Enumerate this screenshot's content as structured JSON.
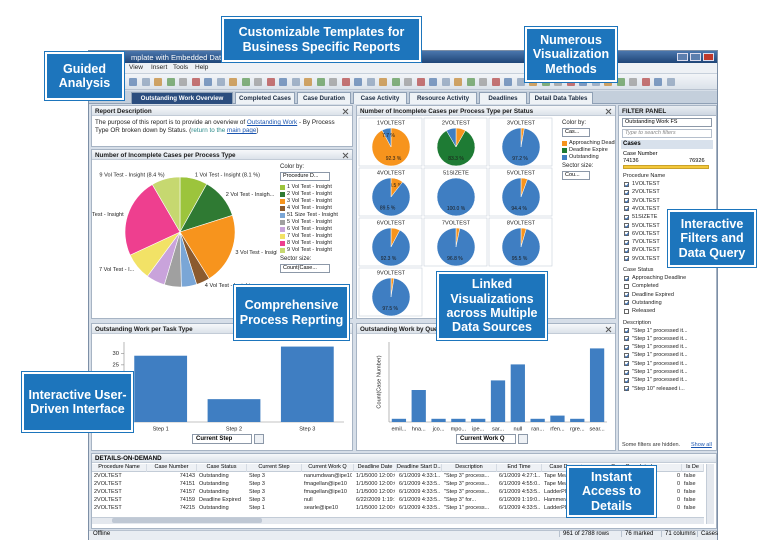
{
  "callouts": [
    "Guided Analysis",
    "Customizable Templates for Business Specific Reports",
    "Numerous Visualization Methods",
    "Interactive Filters and Data Query",
    "Comprehensive Process Reprting",
    "Linked Visualizations across Multiple Data Sources",
    "Interactive User-Driven Interface",
    "Instant Access to Details"
  ],
  "window": {
    "title": "mplate with Embedded Data.dx",
    "menu": [
      "View",
      "Insert",
      "Tools",
      "Help"
    ],
    "tabs": [
      "Outstanding Work Overview",
      "Completed Cases",
      "Case Duration",
      "Case Activity",
      "Resource Activity",
      "Deadlines",
      "Detail Data Tables"
    ],
    "active_tab": 0
  },
  "report": {
    "title": "Report Description",
    "parts": [
      {
        "text": "The purpose of this report is to provide an overview of "
      },
      {
        "text": "Outstanding Work",
        "link": true
      },
      {
        "text": " - By Process Type OR broken down by Status. ("
      },
      {
        "text": "return to the ",
        "muted": true
      },
      {
        "text": "main page",
        "link": true
      },
      {
        "text": ")"
      }
    ]
  },
  "chart_data": [
    {
      "type": "pie",
      "title": "Number of Incomplete Cases per Process Type",
      "color_by": "Color by:",
      "color_by_value": "Procedure D...",
      "sector_size": "Sector size:",
      "sector_size_value": "Count(Case...",
      "slices": [
        {
          "name": "1 Vol Test - Insight",
          "label": "1 Vol Test - Insight (8.1 %)",
          "value": 8.1,
          "color": "#9cc43c"
        },
        {
          "name": "2 Vol Test - Insight",
          "label": "2 Vol Test - Insigh...",
          "value": 12.0,
          "color": "#2f7a33"
        },
        {
          "name": "3 Vol Test - Insight",
          "label": "3 Vol Test - Insight",
          "value": 21.0,
          "color": "#f7941d"
        },
        {
          "name": "4 Vol Test - Insight",
          "label": "4 Vol Test - Insight",
          "value": 4.0,
          "color": "#8b5a2e"
        },
        {
          "name": "51 Size Test - Insight",
          "value": 4.5,
          "color": "#7aa6d6"
        },
        {
          "name": "5 Vol Test - Insight",
          "value": 5.0,
          "color": "#a0a0a0"
        },
        {
          "name": "6 Vol Test - Insight",
          "value": 5.5,
          "color": "#c9a3db"
        },
        {
          "name": "7 Vol Test - Insight",
          "label": "7 Vol Test - I...",
          "value": 8.0,
          "color": "#f2e266"
        },
        {
          "name": "8 Vol Test - Insight",
          "label": "8 Vol Test - Insight",
          "value": 23.5,
          "color": "#ee3f8f"
        },
        {
          "name": "9 Vol Test - Insight",
          "label": "9 Vol Test - Insight (8.4 %)",
          "value": 8.4,
          "color": "#c6d870"
        }
      ]
    },
    {
      "type": "pie_grid",
      "title": "Number of Incomplete Cases per Process Type per Status",
      "color_by": "Color by:",
      "color_by_value": "Cas...",
      "sector_size": "Sector size:",
      "sector_size_value": "Cou...",
      "series": [
        {
          "name": "Approaching Deadline",
          "color": "#f7941d"
        },
        {
          "name": "Deadline Expire",
          "color": "#1e7b34"
        },
        {
          "name": "Outstanding",
          "color": "#3f7ec2"
        }
      ],
      "pies": [
        {
          "name": "1VOLTEST",
          "values": [
            92.3,
            0,
            7.7
          ],
          "value_labels": [
            "92.3 %",
            null,
            "7.7 %"
          ]
        },
        {
          "name": "2VOLTEST",
          "values": [
            8.3,
            83.3,
            8.4
          ],
          "value_labels": [
            null,
            "83.3 %",
            null
          ]
        },
        {
          "name": "3VOLTEST",
          "values": [
            2.8,
            0,
            97.2
          ],
          "value_labels": [
            null,
            null,
            "97.2 %"
          ]
        },
        {
          "name": "4VOLTEST",
          "values": [
            10.5,
            0,
            89.5
          ],
          "value_labels": [
            "10.5 %",
            null,
            "89.5 %"
          ]
        },
        {
          "name": "51SIZETE",
          "values": [
            0,
            0,
            100
          ],
          "value_labels": [
            null,
            null,
            "100.0 %"
          ]
        },
        {
          "name": "5VOLTEST",
          "values": [
            5.6,
            0,
            94.4
          ],
          "value_labels": [
            null,
            null,
            "94.4 %"
          ]
        },
        {
          "name": "6VOLTEST",
          "values": [
            7.7,
            0,
            92.3
          ],
          "value_labels": [
            null,
            null,
            "92.3 %"
          ]
        },
        {
          "name": "7VOLTEST",
          "values": [
            3.2,
            0,
            96.8
          ],
          "value_labels": [
            null,
            null,
            "96.8 %"
          ]
        },
        {
          "name": "8VOLTEST",
          "values": [
            4.5,
            0,
            95.5
          ],
          "value_labels": [
            null,
            null,
            "95.5 %"
          ]
        },
        {
          "name": "9VOLTEST",
          "values": [
            2.5,
            0,
            97.5
          ],
          "value_labels": [
            null,
            null,
            "97.5 %"
          ]
        }
      ]
    },
    {
      "type": "bar",
      "title": "Outstanding Work per Task Type",
      "x_label": "Current Step",
      "categories": [
        "Step 1",
        "Step 2",
        "Step 3"
      ],
      "values": [
        29,
        10,
        33
      ],
      "color": "#3f7ec2",
      "ylim": [
        0,
        35
      ],
      "yticks": [
        0,
        5,
        10,
        15,
        20,
        25,
        30
      ]
    },
    {
      "type": "bar",
      "title": "Outstanding Work by Queue",
      "x_label": "Current Work Q",
      "y_label": "Count(Case Number)",
      "categories": [
        "emil...",
        "hna...",
        "jco...",
        "mpo...",
        "ipe...",
        "sar...",
        "null",
        "ran...",
        "rfen...",
        "rgre...",
        "sear..."
      ],
      "values": [
        1,
        10,
        1,
        1,
        1,
        13,
        18,
        1,
        2,
        1,
        23
      ],
      "color": "#3f7ec2",
      "ylim": [
        0,
        25
      ]
    }
  ],
  "filter_panel": {
    "title": "FILTER PANEL",
    "scheme": "Outstanding Work FS",
    "search": "Type to search filters",
    "section": "Cases",
    "range_filter": {
      "name": "Case Number",
      "min": 74136,
      "max": 76926
    },
    "groups": [
      {
        "name": "Procedure Name",
        "items": [
          {
            "label": "1VOLTEST",
            "checked": true
          },
          {
            "label": "2VOLTEST",
            "checked": true
          },
          {
            "label": "3VOLTEST",
            "checked": true
          },
          {
            "label": "4VOLTEST",
            "checked": true
          },
          {
            "label": "51SIZETE",
            "checked": true
          },
          {
            "label": "5VOLTEST",
            "checked": true
          },
          {
            "label": "6VOLTEST",
            "checked": true
          },
          {
            "label": "7VOLTEST",
            "checked": true
          },
          {
            "label": "8VOLTEST",
            "checked": true
          },
          {
            "label": "9VOLTEST",
            "checked": true
          }
        ]
      },
      {
        "name": "Case Status",
        "items": [
          {
            "label": "Approaching Deadline",
            "checked": true
          },
          {
            "label": "Completed",
            "checked": false
          },
          {
            "label": "Deadline Expired",
            "checked": true
          },
          {
            "label": "Outstanding",
            "checked": true
          },
          {
            "label": "Released",
            "checked": false
          }
        ]
      },
      {
        "name": "Description",
        "items": [
          {
            "label": "\"Step 1\" processed it...",
            "checked": true
          },
          {
            "label": "\"Step 1\" processed it...",
            "checked": true
          },
          {
            "label": "\"Step 1\" processed it...",
            "checked": true
          },
          {
            "label": "\"Step 1\" processed it...",
            "checked": true
          },
          {
            "label": "\"Step 1\" processed it...",
            "checked": true
          },
          {
            "label": "\"Step 1\" processed it...",
            "checked": true
          },
          {
            "label": "\"Step 1\" processed it...",
            "checked": true
          },
          {
            "label": "\"Step 10\" released i...",
            "checked": true
          }
        ]
      }
    ],
    "hidden_note": "Some filters are hidden.",
    "show_all": "Show all"
  },
  "details": {
    "title": "DETAILS-ON-DEMAND",
    "columns": [
      "Procedure Name",
      "Case Number",
      "Case Status",
      "Current Step",
      "Current Work Q",
      "Deadline Date",
      "Deadline Start D...",
      "Description",
      "End Time",
      "Case Des",
      "Case Completed",
      "Is De"
    ],
    "rows": [
      [
        "2VOLTEST",
        74143,
        "Outstanding",
        "Step 3",
        "nanumdwan@ipe10",
        "1/1/5000 12:00:0...",
        "6/1/2009 4:33:1...",
        "\"Step 3\" process...",
        "6/1/2009 4:27:1...",
        "Tape Mea...",
        0,
        "false"
      ],
      [
        "2VOLTEST",
        74151,
        "Outstanding",
        "Step 3",
        "fmagellan@ipe10",
        "1/1/5000 12:00:0...",
        "6/1/2009 4:33:5...",
        "\"Step 3\" process...",
        "6/1/2009 4:55:0...",
        "Tape Mea...",
        0,
        "false"
      ],
      [
        "2VOLTEST",
        74157,
        "Outstanding",
        "Step 3",
        "fmagellan@ipe10",
        "1/1/5000 12:00:0...",
        "6/1/2009 4:33:5...",
        "\"Step 3\" process...",
        "6/1/2009 4:53:5...",
        "LadderPla...",
        0,
        "false"
      ],
      [
        "2VOLTEST",
        74159,
        "Deadline Expired",
        "Step 3",
        "null",
        "6/22/2009 1:19:1...",
        "6/1/2009 4:33:5...",
        "\"Step 3\" for...",
        "6/1/2009 1:19:0...",
        "Hammer/Cl...",
        0,
        "false"
      ],
      [
        "2VOLTEST",
        74215,
        "Outstanding",
        "Step 1",
        "searle@ipe10",
        "1/1/5000 12:00:0...",
        "6/1/2009 4:33:5...",
        "\"Step 1\" process...",
        "6/1/2009 4:33:5...",
        "LadderPla...",
        0,
        "false"
      ]
    ]
  },
  "status_bar": {
    "left": "Offline",
    "items": [
      "961 of 2788 rows",
      "76 marked",
      "71 columns",
      "Cases"
    ]
  }
}
